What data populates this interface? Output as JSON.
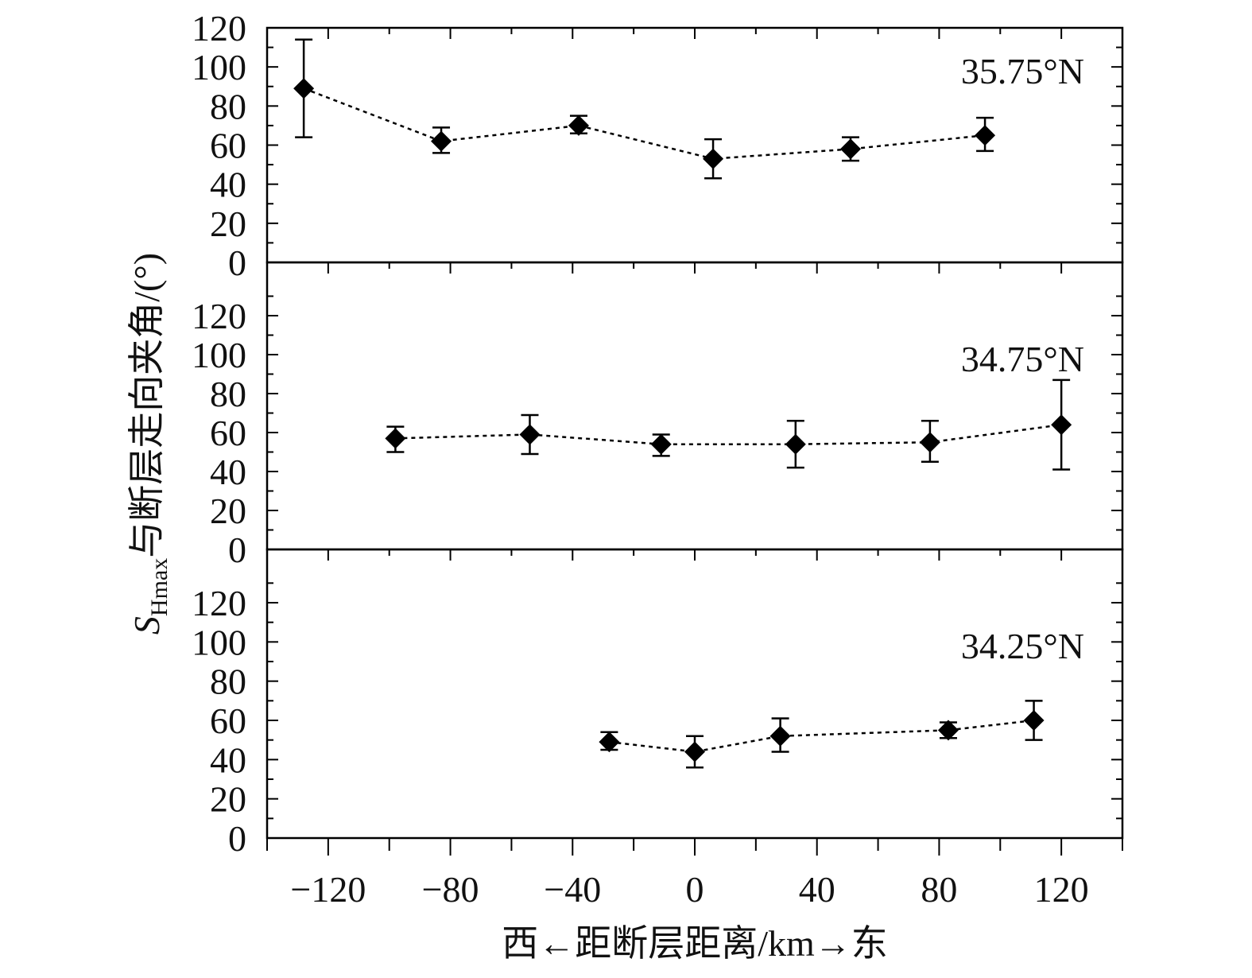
{
  "chart_data": {
    "type": "scatter",
    "style": {
      "marker": "diamond",
      "line": "dotted",
      "error_bars": true,
      "color": "#000000"
    },
    "x_axis": {
      "label": "西←距断层距离/km→东",
      "range": [
        -140,
        140
      ],
      "ticks": [
        -120,
        -80,
        -40,
        0,
        40,
        80,
        120
      ],
      "tick_labels": [
        "−120",
        "−80",
        "−40",
        "0",
        "40",
        "80",
        "120"
      ]
    },
    "y_axis": {
      "label_prefix": "S",
      "label_subscript": "Hmax",
      "label_suffix": "与断层走向夹角/(°)",
      "range": [
        0,
        120
      ],
      "ticks": [
        0,
        20,
        40,
        60,
        80,
        100,
        120
      ]
    },
    "panels": [
      {
        "label": "35.75°N",
        "y_tick_labels": [
          "0",
          "20",
          "40",
          "60",
          "80",
          "100",
          "120"
        ],
        "points": [
          {
            "x": -128,
            "y": 89,
            "err_low": 64,
            "err_high": 114
          },
          {
            "x": -83,
            "y": 62,
            "err_low": 56,
            "err_high": 69
          },
          {
            "x": -38,
            "y": 70,
            "err_low": 66,
            "err_high": 75
          },
          {
            "x": 6,
            "y": 53,
            "err_low": 43,
            "err_high": 63
          },
          {
            "x": 51,
            "y": 58,
            "err_low": 52,
            "err_high": 64
          },
          {
            "x": 95,
            "y": 65,
            "err_low": 57,
            "err_high": 74
          }
        ]
      },
      {
        "label": "34.75°N",
        "y_tick_labels": [
          "0",
          "20",
          "40",
          "60",
          "80",
          "100",
          "120"
        ],
        "points": [
          {
            "x": -98,
            "y": 57,
            "err_low": 50,
            "err_high": 63
          },
          {
            "x": -54,
            "y": 59,
            "err_low": 49,
            "err_high": 69
          },
          {
            "x": -11,
            "y": 54,
            "err_low": 48,
            "err_high": 59
          },
          {
            "x": 33,
            "y": 54,
            "err_low": 42,
            "err_high": 66
          },
          {
            "x": 77,
            "y": 55,
            "err_low": 45,
            "err_high": 66
          },
          {
            "x": 120,
            "y": 64,
            "err_low": 41,
            "err_high": 87
          }
        ]
      },
      {
        "label": "34.25°N",
        "y_tick_labels": [
          "0",
          "20",
          "40",
          "60",
          "80",
          "100",
          "120"
        ],
        "points": [
          {
            "x": -28,
            "y": 49,
            "err_low": 45,
            "err_high": 54
          },
          {
            "x": 0,
            "y": 44,
            "err_low": 36,
            "err_high": 52
          },
          {
            "x": 28,
            "y": 52,
            "err_low": 44,
            "err_high": 61
          },
          {
            "x": 83,
            "y": 55,
            "err_low": 51,
            "err_high": 59
          },
          {
            "x": 111,
            "y": 60,
            "err_low": 50,
            "err_high": 70
          }
        ]
      }
    ]
  }
}
